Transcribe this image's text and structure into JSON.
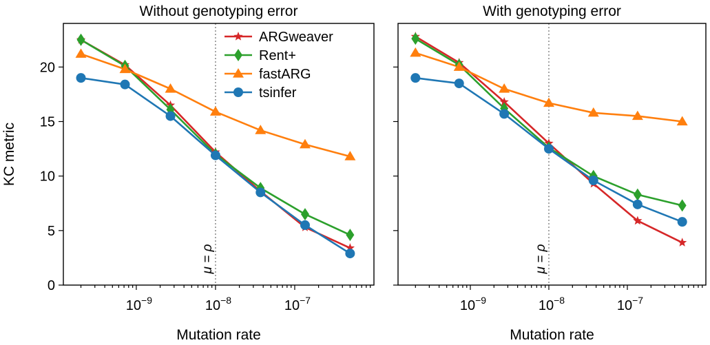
{
  "chart_data": [
    {
      "type": "line",
      "title": "Without genotyping error",
      "xlabel": "Mutation rate",
      "ylabel": "KC metric",
      "xscale": "log",
      "xlim": [
        1.2e-10,
        1e-06
      ],
      "ylim": [
        0,
        24
      ],
      "yticks": [
        0,
        5,
        10,
        15,
        20
      ],
      "xticks": [
        {
          "value": 1e-09,
          "label": "10",
          "exp": "−9"
        },
        {
          "value": 1e-08,
          "label": "10",
          "exp": "−8"
        },
        {
          "value": 1e-07,
          "label": "10",
          "exp": "−7"
        }
      ],
      "x": [
        2e-10,
        7.2e-10,
        2.7e-09,
        1e-08,
        3.7e-08,
        1.35e-07,
        5e-07
      ],
      "reference_line": {
        "x": 1e-08,
        "label": "μ = ρ"
      },
      "legend_position": "top-right",
      "series": [
        {
          "name": "ARGweaver",
          "color": "#d62728",
          "marker": "star",
          "values": [
            22.5,
            20.2,
            16.5,
            12.2,
            8.6,
            5.3,
            3.4
          ]
        },
        {
          "name": "Rent+",
          "color": "#2ca02c",
          "marker": "diamond",
          "values": [
            22.5,
            20.1,
            16.1,
            12.0,
            8.9,
            6.5,
            4.6
          ]
        },
        {
          "name": "fastARG",
          "color": "#ff7f0e",
          "marker": "triangle",
          "values": [
            21.2,
            19.8,
            18.0,
            15.9,
            14.2,
            12.9,
            11.8
          ]
        },
        {
          "name": "tsinfer",
          "color": "#1f77b4",
          "marker": "circle",
          "values": [
            19.0,
            18.4,
            15.5,
            11.9,
            8.5,
            5.5,
            2.9
          ]
        }
      ]
    },
    {
      "type": "line",
      "title": "With genotyping error",
      "xlabel": "Mutation rate",
      "ylabel": "",
      "xscale": "log",
      "xlim": [
        1.2e-10,
        1e-06
      ],
      "ylim": [
        0,
        24
      ],
      "yticks": [
        0,
        5,
        10,
        15,
        20
      ],
      "xticks": [
        {
          "value": 1e-09,
          "label": "10",
          "exp": "−9"
        },
        {
          "value": 1e-08,
          "label": "10",
          "exp": "−8"
        },
        {
          "value": 1e-07,
          "label": "10",
          "exp": "−7"
        }
      ],
      "x": [
        2e-10,
        7.2e-10,
        2.7e-09,
        1e-08,
        3.7e-08,
        1.35e-07,
        5e-07
      ],
      "reference_line": {
        "x": 1e-08,
        "label": "μ = ρ"
      },
      "series": [
        {
          "name": "ARGweaver",
          "color": "#d62728",
          "marker": "star",
          "values": [
            22.8,
            20.4,
            16.8,
            13.0,
            9.3,
            5.9,
            3.9
          ]
        },
        {
          "name": "Rent+",
          "color": "#2ca02c",
          "marker": "diamond",
          "values": [
            22.6,
            20.2,
            16.2,
            12.6,
            10.0,
            8.3,
            7.3
          ]
        },
        {
          "name": "fastARG",
          "color": "#ff7f0e",
          "marker": "triangle",
          "values": [
            21.3,
            20.0,
            18.0,
            16.7,
            15.8,
            15.5,
            15.0
          ]
        },
        {
          "name": "tsinfer",
          "color": "#1f77b4",
          "marker": "circle",
          "values": [
            19.0,
            18.5,
            15.7,
            12.5,
            9.6,
            7.4,
            5.8
          ]
        }
      ]
    }
  ]
}
